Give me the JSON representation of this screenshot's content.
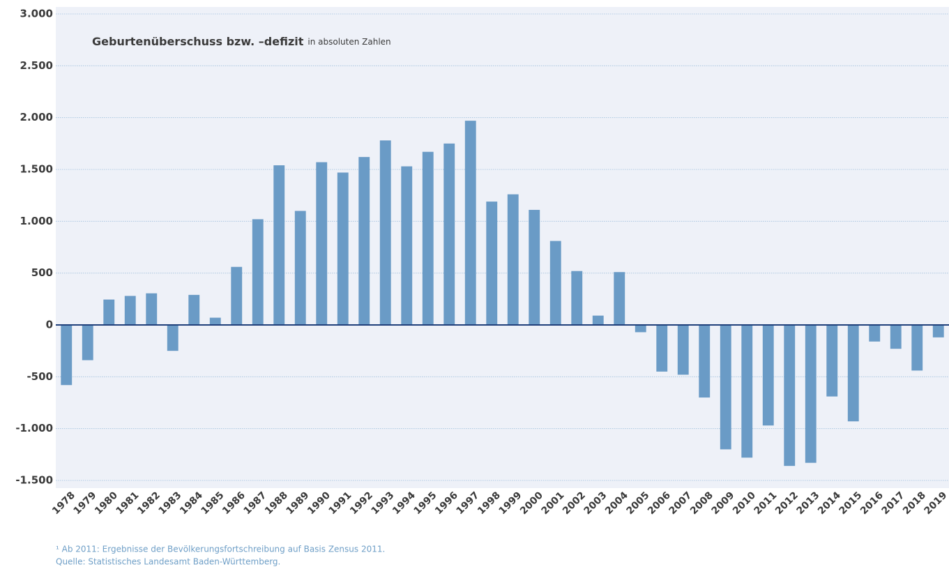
{
  "chart_data": {
    "type": "bar",
    "title": "Geburtenüberschuss bzw. –defizit",
    "subtitle": "in absoluten Zahlen",
    "notes": [
      "¹ Ab 2011: Ergebnisse der Bevölkerungsfortschreibung auf Basis Zensus 2011.",
      "Quelle: Statistisches Landesamt Baden-Württemberg."
    ],
    "categories": [
      "1978",
      "1979",
      "1980",
      "1981",
      "1982",
      "1983",
      "1984",
      "1985",
      "1986",
      "1987",
      "1988",
      "1989",
      "1990",
      "1991",
      "1992",
      "1993",
      "1994",
      "1995",
      "1996",
      "1997",
      "1998",
      "1999",
      "2000",
      "2001",
      "2002",
      "2003",
      "2004",
      "2005",
      "2006",
      "2007",
      "2008",
      "2009",
      "2010",
      "2011",
      "2012",
      "2013",
      "2014",
      "2015",
      "2016",
      "2017",
      "2018",
      "2019"
    ],
    "values": [
      -580,
      -340,
      245,
      280,
      305,
      -250,
      290,
      70,
      560,
      1020,
      1540,
      1100,
      1570,
      1470,
      1620,
      1780,
      1530,
      1670,
      1750,
      1970,
      1190,
      1260,
      1110,
      810,
      520,
      90,
      510,
      -70,
      -450,
      -480,
      -700,
      -1200,
      -1280,
      -970,
      -1360,
      -1330,
      -690,
      -930,
      -160,
      -230,
      -440,
      -120
    ],
    "color": "#6a9bc6",
    "ylim": [
      -1500,
      3000
    ],
    "yticks": [
      {
        "value": -1500,
        "label": "-1.500"
      },
      {
        "value": -1000,
        "label": "-1.000"
      },
      -500,
      0,
      500,
      {
        "value": 1000,
        "label": "1.000"
      },
      {
        "value": 1500,
        "label": "1.500"
      },
      {
        "value": 2000,
        "label": "2.000"
      },
      {
        "value": 2500,
        "label": "2.500"
      },
      {
        "value": 3000,
        "label": "3.000"
      }
    ],
    "grid": true
  }
}
